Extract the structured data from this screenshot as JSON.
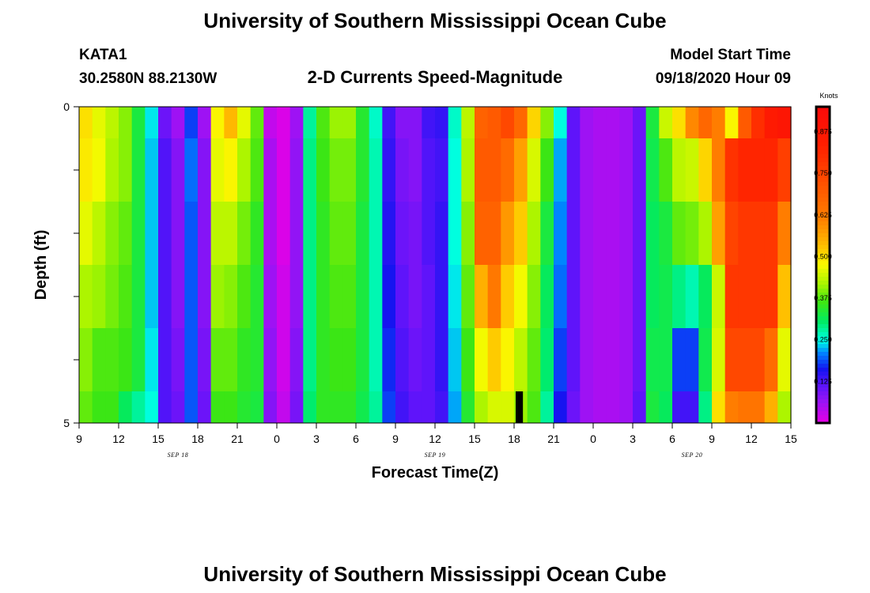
{
  "header": {
    "title_top": "University of Southern Mississippi Ocean Cube",
    "title_bottom": "University of Southern Mississippi Ocean Cube",
    "station_id": "KATA1",
    "station_coords": "30.2580N 88.2130W",
    "plot_title": "2-D Currents Speed-Magnitude",
    "model_label": "Model Start Time",
    "model_time": "09/18/2020 Hour 09"
  },
  "chart_data": {
    "type": "heatmap",
    "title": "2-D Currents Speed-Magnitude",
    "xlabel": "Forecast Time(Z)",
    "ylabel": "Depth (ft)",
    "x_ticks": [
      "9",
      "12",
      "15",
      "18",
      "21",
      "0",
      "3",
      "6",
      "9",
      "12",
      "15",
      "18",
      "21",
      "0",
      "3",
      "6",
      "9",
      "12",
      "15"
    ],
    "date_labels": [
      {
        "label": "SEP 18",
        "at_tick": 2.5
      },
      {
        "label": "SEP 19",
        "at_tick": 9
      },
      {
        "label": "SEP 20",
        "at_tick": 15.5
      }
    ],
    "y_ticks": [
      "0",
      "5"
    ],
    "ylim": [
      0,
      5
    ],
    "colorbar": {
      "title": "Knots",
      "min": 0.0,
      "max": 0.95,
      "ticks": [
        "0.125",
        "0.250",
        "0.375",
        "0.500",
        "0.625",
        "0.750",
        "0.875"
      ],
      "tick_values": [
        0.125,
        0.25,
        0.375,
        0.5,
        0.625,
        0.75,
        0.875
      ]
    },
    "hours": 54,
    "depth_bands": [
      "0-0.5",
      "0.5-1.5",
      "1.5-2.5",
      "2.5-3.5",
      "3.5-4.5",
      "4.5-5"
    ],
    "speed_knots": [
      [
        0.5,
        0.46,
        0.43,
        0.4,
        0.33,
        0.24,
        0.1,
        0.06,
        0.18,
        0.06,
        0.48,
        0.54,
        0.46,
        0.38,
        0.03,
        0.01,
        0.06,
        0.28,
        0.37,
        0.41,
        0.41,
        0.34,
        0.26,
        0.13,
        0.08,
        0.08,
        0.13,
        0.14,
        0.26,
        0.43,
        0.68,
        0.7,
        0.74,
        0.67,
        0.51,
        0.4,
        0.25,
        0.11,
        0.06,
        0.05,
        0.05,
        0.06,
        0.1,
        0.33,
        0.44,
        0.5,
        0.6,
        0.67,
        0.62,
        0.48,
        0.7,
        0.8,
        0.86,
        0.88
      ],
      [
        0.49,
        0.47,
        0.42,
        0.4,
        0.33,
        0.23,
        0.12,
        0.08,
        0.2,
        0.08,
        0.46,
        0.48,
        0.42,
        0.37,
        0.05,
        0.01,
        0.07,
        0.29,
        0.36,
        0.39,
        0.39,
        0.34,
        0.27,
        0.14,
        0.09,
        0.08,
        0.12,
        0.13,
        0.25,
        0.42,
        0.7,
        0.7,
        0.66,
        0.57,
        0.45,
        0.36,
        0.22,
        0.11,
        0.06,
        0.05,
        0.05,
        0.06,
        0.1,
        0.32,
        0.37,
        0.43,
        0.44,
        0.51,
        0.62,
        0.79,
        0.82,
        0.82,
        0.82,
        0.76
      ],
      [
        0.46,
        0.43,
        0.4,
        0.38,
        0.33,
        0.23,
        0.12,
        0.08,
        0.19,
        0.08,
        0.43,
        0.43,
        0.39,
        0.35,
        0.05,
        0.01,
        0.07,
        0.29,
        0.35,
        0.38,
        0.38,
        0.33,
        0.27,
        0.15,
        0.1,
        0.09,
        0.12,
        0.14,
        0.25,
        0.4,
        0.68,
        0.68,
        0.58,
        0.52,
        0.42,
        0.33,
        0.21,
        0.11,
        0.06,
        0.05,
        0.05,
        0.06,
        0.1,
        0.31,
        0.33,
        0.38,
        0.39,
        0.42,
        0.57,
        0.75,
        0.78,
        0.78,
        0.78,
        0.62
      ],
      [
        0.42,
        0.41,
        0.39,
        0.37,
        0.33,
        0.23,
        0.12,
        0.08,
        0.19,
        0.08,
        0.41,
        0.4,
        0.37,
        0.34,
        0.06,
        0.02,
        0.07,
        0.29,
        0.35,
        0.37,
        0.37,
        0.33,
        0.27,
        0.16,
        0.11,
        0.09,
        0.11,
        0.14,
        0.24,
        0.38,
        0.55,
        0.63,
        0.52,
        0.47,
        0.4,
        0.31,
        0.2,
        0.11,
        0.06,
        0.05,
        0.05,
        0.06,
        0.1,
        0.31,
        0.32,
        0.29,
        0.27,
        0.31,
        0.44,
        0.78,
        0.78,
        0.78,
        0.78,
        0.53
      ],
      [
        0.4,
        0.37,
        0.37,
        0.36,
        0.33,
        0.24,
        0.12,
        0.09,
        0.19,
        0.09,
        0.38,
        0.38,
        0.35,
        0.34,
        0.07,
        0.02,
        0.08,
        0.29,
        0.35,
        0.36,
        0.36,
        0.33,
        0.27,
        0.17,
        0.12,
        0.1,
        0.11,
        0.14,
        0.23,
        0.36,
        0.47,
        0.52,
        0.48,
        0.43,
        0.38,
        0.3,
        0.18,
        0.11,
        0.06,
        0.05,
        0.05,
        0.06,
        0.1,
        0.32,
        0.32,
        0.18,
        0.18,
        0.32,
        0.45,
        0.74,
        0.74,
        0.74,
        0.66,
        0.46
      ],
      [
        0.38,
        0.36,
        0.36,
        0.31,
        0.28,
        0.25,
        0.12,
        0.1,
        0.19,
        0.1,
        0.36,
        0.36,
        0.34,
        0.33,
        0.08,
        0.03,
        0.09,
        0.3,
        0.35,
        0.35,
        0.35,
        0.32,
        0.28,
        0.18,
        0.13,
        0.11,
        0.11,
        0.13,
        0.22,
        0.34,
        0.42,
        0.45,
        0.45,
        0.41,
        0.37,
        0.28,
        0.16,
        0.1,
        0.06,
        0.05,
        0.05,
        0.06,
        0.11,
        0.33,
        0.31,
        0.13,
        0.13,
        0.29,
        0.5,
        0.62,
        0.64,
        0.64,
        0.55,
        0.42
      ]
    ],
    "missing_marker": {
      "hour_index": 33,
      "depth_band": 5,
      "color": "#000000"
    }
  }
}
